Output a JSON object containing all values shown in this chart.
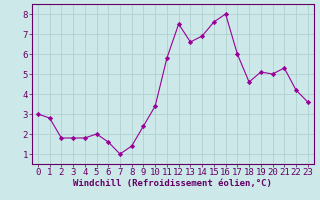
{
  "x": [
    0,
    1,
    2,
    3,
    4,
    5,
    6,
    7,
    8,
    9,
    10,
    11,
    12,
    13,
    14,
    15,
    16,
    17,
    18,
    19,
    20,
    21,
    22,
    23
  ],
  "y": [
    3.0,
    2.8,
    1.8,
    1.8,
    1.8,
    2.0,
    1.6,
    1.0,
    1.4,
    2.4,
    3.4,
    5.8,
    7.5,
    6.6,
    6.9,
    7.6,
    8.0,
    6.0,
    4.6,
    5.1,
    5.0,
    5.3,
    4.2,
    3.6
  ],
  "line_color": "#990099",
  "marker": "D",
  "marker_size": 2.2,
  "bg_color": "#cce8e8",
  "grid_color": "#b0d0d0",
  "xlabel": "Windchill (Refroidissement éolien,°C)",
  "xlabel_color": "#660066",
  "tick_color": "#660066",
  "xlabel_fontsize": 6.5,
  "tick_fontsize": 6.5,
  "ylim": [
    0.5,
    8.5
  ],
  "xlim": [
    -0.5,
    23.5
  ],
  "yticks": [
    1,
    2,
    3,
    4,
    5,
    6,
    7,
    8
  ],
  "xticks": [
    0,
    1,
    2,
    3,
    4,
    5,
    6,
    7,
    8,
    9,
    10,
    11,
    12,
    13,
    14,
    15,
    16,
    17,
    18,
    19,
    20,
    21,
    22,
    23
  ]
}
